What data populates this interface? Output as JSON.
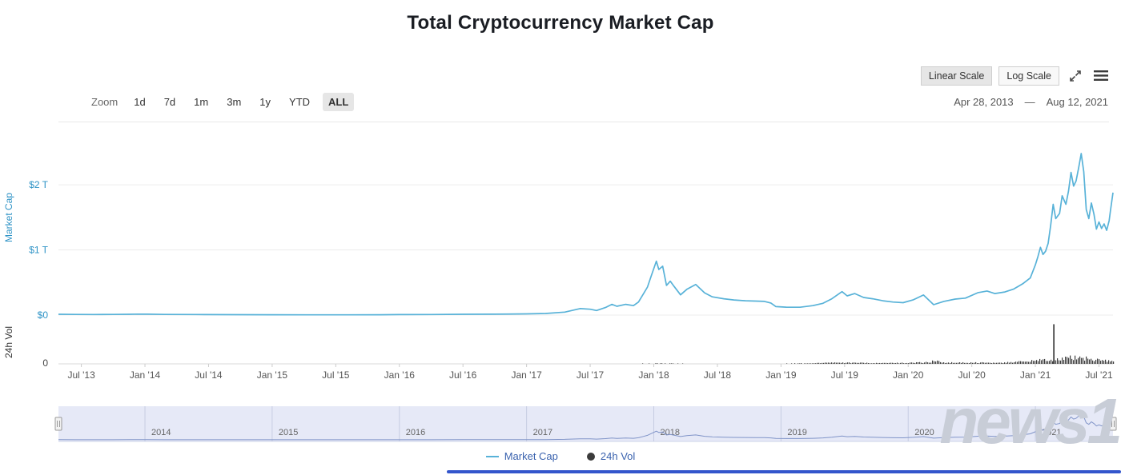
{
  "title": "Total Cryptocurrency Market Cap",
  "toolbar": {
    "linear_scale_label": "Linear Scale",
    "log_scale_label": "Log Scale",
    "zoom_label": "Zoom",
    "zoom_options": [
      "1d",
      "7d",
      "1m",
      "3m",
      "1y",
      "YTD",
      "ALL"
    ],
    "active_zoom": "ALL",
    "date_from": "Apr 28, 2013",
    "date_separator": "—",
    "date_to": "Aug 12, 2021"
  },
  "legend": {
    "items": [
      {
        "label": "Market Cap",
        "marker": "line",
        "color": "#58b2d8"
      },
      {
        "label": "24h Vol",
        "marker": "circle",
        "color": "#3b3b3b"
      }
    ]
  },
  "watermark": {
    "text": "news1"
  },
  "colors": {
    "market_cap_line": "#58b2d8",
    "axis_label_blue": "#2e93c6",
    "volume_bar": "#3b3b3b",
    "legend_text": "#3a62ae",
    "navigator_fill": "#e6e9f7",
    "navigator_line": "#8094c8",
    "selected_button_bg": "#e6e6e6",
    "watermark_gray": "#c8cdd7",
    "watermark_blue": "#3355cc"
  },
  "chart_data": {
    "type": "line",
    "title": "Total Cryptocurrency Market Cap",
    "x_axis": {
      "unit": "decimal_year",
      "range": [
        2013.32,
        2021.61
      ],
      "ticks": [
        {
          "year": 2013.5,
          "label": "Jul '13"
        },
        {
          "year": 2014.0,
          "label": "Jan '14"
        },
        {
          "year": 2014.5,
          "label": "Jul '14"
        },
        {
          "year": 2015.0,
          "label": "Jan '15"
        },
        {
          "year": 2015.5,
          "label": "Jul '15"
        },
        {
          "year": 2016.0,
          "label": "Jan '16"
        },
        {
          "year": 2016.5,
          "label": "Jul '16"
        },
        {
          "year": 2017.0,
          "label": "Jan '17"
        },
        {
          "year": 2017.5,
          "label": "Jul '17"
        },
        {
          "year": 2018.0,
          "label": "Jan '18"
        },
        {
          "year": 2018.5,
          "label": "Jul '18"
        },
        {
          "year": 2019.0,
          "label": "Jan '19"
        },
        {
          "year": 2019.5,
          "label": "Jul '19"
        },
        {
          "year": 2020.0,
          "label": "Jan '20"
        },
        {
          "year": 2020.5,
          "label": "Jul '20"
        },
        {
          "year": 2021.0,
          "label": "Jan '21"
        },
        {
          "year": 2021.5,
          "label": "Jul '21"
        }
      ]
    },
    "y_axis_market_cap": {
      "title": "Market Cap",
      "unit": "USD trillions",
      "plot_max": 2.75,
      "ticks": [
        {
          "value": 0,
          "label": "$0"
        },
        {
          "value": 1,
          "label": "$1 T"
        },
        {
          "value": 2,
          "label": "$2 T"
        }
      ]
    },
    "y_axis_volume": {
      "title": "24h Vol",
      "unit": "USD billions",
      "plot_max": 2300,
      "ticks": [
        {
          "value": 0,
          "label": "0"
        }
      ]
    },
    "series": [
      {
        "name": "Market Cap",
        "type": "line",
        "color": "#58b2d8",
        "unit": "T",
        "points": [
          [
            2013.32,
            0.012
          ],
          [
            2013.45,
            0.01
          ],
          [
            2013.6,
            0.009
          ],
          [
            2013.75,
            0.01
          ],
          [
            2013.88,
            0.012
          ],
          [
            2013.95,
            0.015
          ],
          [
            2014.02,
            0.013
          ],
          [
            2014.15,
            0.01
          ],
          [
            2014.4,
            0.008
          ],
          [
            2014.7,
            0.006
          ],
          [
            2015.0,
            0.005
          ],
          [
            2015.3,
            0.004
          ],
          [
            2015.6,
            0.004
          ],
          [
            2015.85,
            0.005
          ],
          [
            2016.0,
            0.007
          ],
          [
            2016.25,
            0.009
          ],
          [
            2016.5,
            0.012
          ],
          [
            2016.75,
            0.013
          ],
          [
            2017.0,
            0.018
          ],
          [
            2017.15,
            0.025
          ],
          [
            2017.3,
            0.045
          ],
          [
            2017.42,
            0.1
          ],
          [
            2017.5,
            0.09
          ],
          [
            2017.55,
            0.07
          ],
          [
            2017.62,
            0.115
          ],
          [
            2017.67,
            0.165
          ],
          [
            2017.71,
            0.135
          ],
          [
            2017.78,
            0.165
          ],
          [
            2017.84,
            0.145
          ],
          [
            2017.88,
            0.2
          ],
          [
            2017.92,
            0.33
          ],
          [
            2017.95,
            0.43
          ],
          [
            2017.98,
            0.6
          ],
          [
            2018.02,
            0.828
          ],
          [
            2018.04,
            0.7
          ],
          [
            2018.07,
            0.75
          ],
          [
            2018.1,
            0.455
          ],
          [
            2018.13,
            0.52
          ],
          [
            2018.16,
            0.44
          ],
          [
            2018.21,
            0.31
          ],
          [
            2018.26,
            0.395
          ],
          [
            2018.33,
            0.47
          ],
          [
            2018.4,
            0.34
          ],
          [
            2018.46,
            0.28
          ],
          [
            2018.55,
            0.25
          ],
          [
            2018.63,
            0.232
          ],
          [
            2018.72,
            0.22
          ],
          [
            2018.8,
            0.215
          ],
          [
            2018.87,
            0.21
          ],
          [
            2018.92,
            0.185
          ],
          [
            2018.96,
            0.13
          ],
          [
            2019.04,
            0.122
          ],
          [
            2019.15,
            0.12
          ],
          [
            2019.25,
            0.145
          ],
          [
            2019.33,
            0.18
          ],
          [
            2019.4,
            0.25
          ],
          [
            2019.48,
            0.36
          ],
          [
            2019.52,
            0.295
          ],
          [
            2019.58,
            0.33
          ],
          [
            2019.65,
            0.27
          ],
          [
            2019.72,
            0.25
          ],
          [
            2019.8,
            0.22
          ],
          [
            2019.88,
            0.2
          ],
          [
            2019.96,
            0.19
          ],
          [
            2020.04,
            0.235
          ],
          [
            2020.12,
            0.308
          ],
          [
            2020.2,
            0.16
          ],
          [
            2020.28,
            0.21
          ],
          [
            2020.37,
            0.245
          ],
          [
            2020.45,
            0.26
          ],
          [
            2020.55,
            0.345
          ],
          [
            2020.62,
            0.37
          ],
          [
            2020.68,
            0.33
          ],
          [
            2020.76,
            0.355
          ],
          [
            2020.83,
            0.4
          ],
          [
            2020.9,
            0.48
          ],
          [
            2020.96,
            0.57
          ],
          [
            2021.0,
            0.772
          ],
          [
            2021.02,
            0.9
          ],
          [
            2021.04,
            1.04
          ],
          [
            2021.06,
            0.93
          ],
          [
            2021.08,
            0.98
          ],
          [
            2021.1,
            1.1
          ],
          [
            2021.12,
            1.38
          ],
          [
            2021.14,
            1.7
          ],
          [
            2021.16,
            1.48
          ],
          [
            2021.19,
            1.56
          ],
          [
            2021.21,
            1.83
          ],
          [
            2021.24,
            1.7
          ],
          [
            2021.26,
            1.9
          ],
          [
            2021.28,
            2.19
          ],
          [
            2021.3,
            1.98
          ],
          [
            2021.32,
            2.06
          ],
          [
            2021.34,
            2.26
          ],
          [
            2021.36,
            2.48
          ],
          [
            2021.38,
            2.2
          ],
          [
            2021.4,
            1.62
          ],
          [
            2021.42,
            1.48
          ],
          [
            2021.44,
            1.72
          ],
          [
            2021.46,
            1.55
          ],
          [
            2021.48,
            1.32
          ],
          [
            2021.5,
            1.43
          ],
          [
            2021.52,
            1.33
          ],
          [
            2021.54,
            1.4
          ],
          [
            2021.56,
            1.3
          ],
          [
            2021.58,
            1.45
          ],
          [
            2021.59,
            1.6
          ],
          [
            2021.61,
            1.88
          ]
        ]
      },
      {
        "name": "24h Vol",
        "type": "column",
        "color": "#3b3b3b",
        "unit": "B",
        "points": [
          [
            2013.32,
            0.05
          ],
          [
            2014.0,
            0.1
          ],
          [
            2015.0,
            0.1
          ],
          [
            2016.0,
            0.2
          ],
          [
            2016.5,
            0.5
          ],
          [
            2017.0,
            1
          ],
          [
            2017.3,
            3
          ],
          [
            2017.5,
            6
          ],
          [
            2017.7,
            8
          ],
          [
            2017.92,
            18
          ],
          [
            2018.02,
            28
          ],
          [
            2018.1,
            22
          ],
          [
            2018.3,
            14
          ],
          [
            2018.5,
            12
          ],
          [
            2018.7,
            11
          ],
          [
            2018.9,
            13
          ],
          [
            2019.0,
            15
          ],
          [
            2019.15,
            28
          ],
          [
            2019.3,
            45
          ],
          [
            2019.45,
            65
          ],
          [
            2019.55,
            55
          ],
          [
            2019.7,
            45
          ],
          [
            2019.85,
            40
          ],
          [
            2020.0,
            55
          ],
          [
            2020.15,
            90
          ],
          [
            2020.2,
            140
          ],
          [
            2020.3,
            70
          ],
          [
            2020.45,
            60
          ],
          [
            2020.6,
            70
          ],
          [
            2020.75,
            75
          ],
          [
            2020.9,
            110
          ],
          [
            2021.0,
            170
          ],
          [
            2021.04,
            220
          ],
          [
            2021.08,
            200
          ],
          [
            2021.12,
            260
          ],
          [
            2021.17,
            240
          ],
          [
            2021.22,
            290
          ],
          [
            2021.28,
            320
          ],
          [
            2021.34,
            350
          ],
          [
            2021.38,
            310
          ],
          [
            2021.42,
            270
          ],
          [
            2021.46,
            240
          ],
          [
            2021.5,
            190
          ],
          [
            2021.54,
            170
          ],
          [
            2021.58,
            150
          ],
          [
            2021.61,
            145
          ]
        ]
      }
    ],
    "volume_spike": {
      "year": 2021.145,
      "value_b": 2150
    },
    "navigator": {
      "year_labels": [
        "2014",
        "2015",
        "2016",
        "2017",
        "2018",
        "2019",
        "2020",
        "2021"
      ],
      "value_max": 2.6
    }
  }
}
